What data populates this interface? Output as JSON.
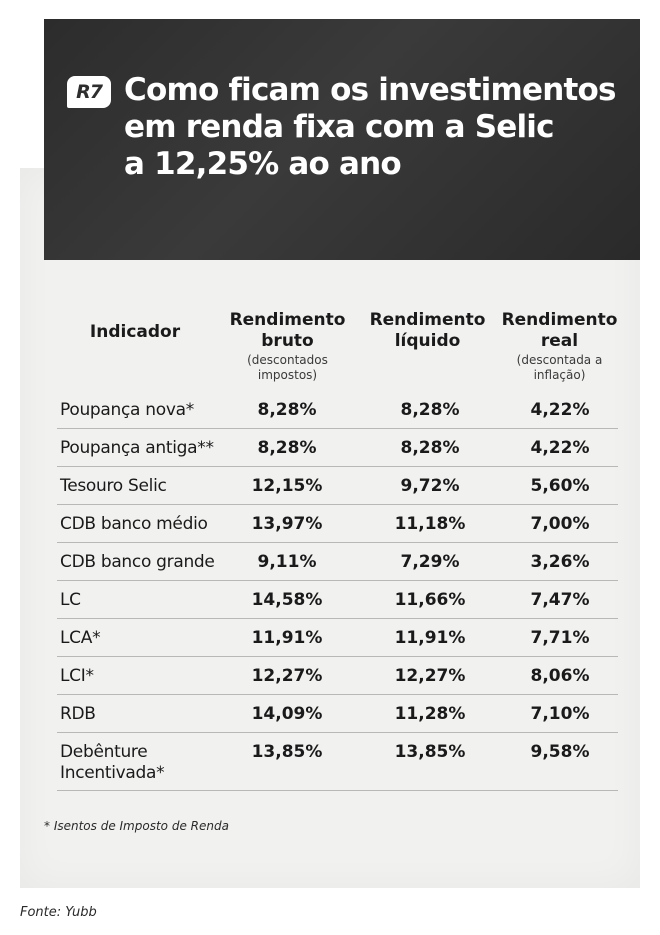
{
  "header": {
    "logo_text": "R7",
    "title_lines": [
      "Como ficam os investimentos",
      "em renda fixa com a Selic",
      "a 12,25% ao ano"
    ]
  },
  "table": {
    "columns": [
      {
        "title_lines": [
          "Indicador"
        ],
        "note_lines": []
      },
      {
        "title_lines": [
          "Rendimento",
          "bruto"
        ],
        "note_lines": [
          "(descontados",
          "impostos)"
        ]
      },
      {
        "title_lines": [
          "Rendimento",
          "líquido"
        ],
        "note_lines": []
      },
      {
        "title_lines": [
          "Rendimento",
          "real"
        ],
        "note_lines": [
          "(descontada a",
          "inflação)"
        ]
      }
    ],
    "rows": [
      {
        "name_lines": [
          "Poupança nova*"
        ],
        "bruto": "8,28%",
        "liquido": "8,28%",
        "real": "4,22%"
      },
      {
        "name_lines": [
          "Poupança antiga**"
        ],
        "bruto": "8,28%",
        "liquido": "8,28%",
        "real": "4,22%"
      },
      {
        "name_lines": [
          "Tesouro Selic"
        ],
        "bruto": "12,15%",
        "liquido": "9,72%",
        "real": "5,60%"
      },
      {
        "name_lines": [
          "CDB banco médio"
        ],
        "bruto": "13,97%",
        "liquido": "11,18%",
        "real": "7,00%"
      },
      {
        "name_lines": [
          "CDB banco grande"
        ],
        "bruto": "9,11%",
        "liquido": "7,29%",
        "real": "3,26%"
      },
      {
        "name_lines": [
          "LC"
        ],
        "bruto": "14,58%",
        "liquido": "11,66%",
        "real": "7,47%"
      },
      {
        "name_lines": [
          "LCA*"
        ],
        "bruto": "11,91%",
        "liquido": "11,91%",
        "real": "7,71%"
      },
      {
        "name_lines": [
          "LCI*"
        ],
        "bruto": "12,27%",
        "liquido": "12,27%",
        "real": "8,06%"
      },
      {
        "name_lines": [
          "RDB"
        ],
        "bruto": "14,09%",
        "liquido": "11,28%",
        "real": "7,10%"
      },
      {
        "name_lines": [
          "Debênture",
          "Incentivada*"
        ],
        "bruto": "13,85%",
        "liquido": "13,85%",
        "real": "9,58%"
      }
    ]
  },
  "footnote": "* Isentos de Imposto de Renda",
  "source": "Fonte: Yubb",
  "colors": {
    "header_bg": "#2f2f2f",
    "paper_bg": "#f1f1f0",
    "text": "#1a1a1a"
  }
}
